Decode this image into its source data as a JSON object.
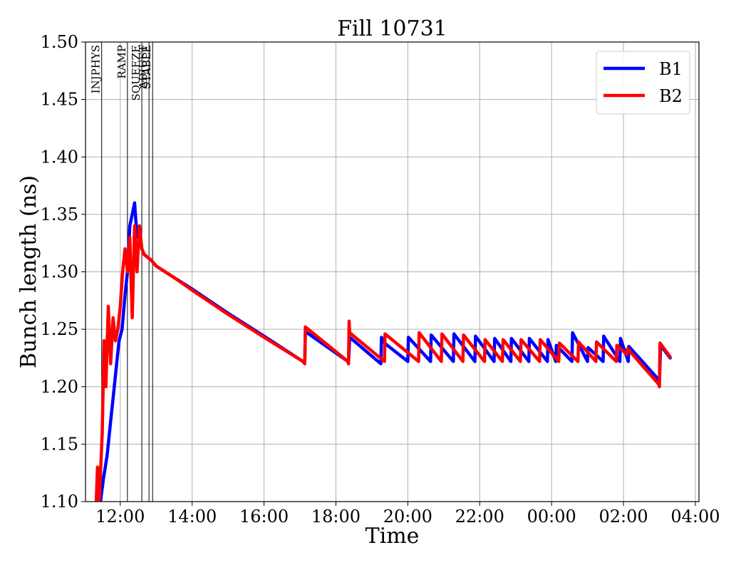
{
  "chart_data": {
    "type": "line",
    "title": "Fill 10731",
    "xlabel": "Time",
    "ylabel": "Bunch length (ns)",
    "x_unit": "time of day (hours, continuous across midnight)",
    "xlim": [
      "11:02",
      "04:06"
    ],
    "ylim": [
      1.1,
      1.5
    ],
    "x_ticks": [
      {
        "label": "12:00",
        "value": "12:00"
      },
      {
        "label": "14:00",
        "value": "14:00"
      },
      {
        "label": "16:00",
        "value": "16:00"
      },
      {
        "label": "18:00",
        "value": "18:00"
      },
      {
        "label": "20:00",
        "value": "20:00"
      },
      {
        "label": "22:00",
        "value": "22:00"
      },
      {
        "label": "00:00",
        "value": "00:00"
      },
      {
        "label": "02:00",
        "value": "02:00"
      },
      {
        "label": "04:00",
        "value": "04:00"
      }
    ],
    "y_ticks": [
      "1.10",
      "1.15",
      "1.20",
      "1.25",
      "1.30",
      "1.35",
      "1.40",
      "1.45",
      "1.50"
    ],
    "grid": true,
    "legend": {
      "placement": "top-right",
      "entries": [
        "B1",
        "B2"
      ]
    },
    "phases": [
      {
        "label": "INJPHYS",
        "x": "11:29"
      },
      {
        "label": "RAMP",
        "x": "12:12"
      },
      {
        "label": "SQUEEZE",
        "x": "12:36"
      },
      {
        "label": "ADJUST",
        "x": "12:48"
      },
      {
        "label": "STABLE",
        "x": "12:54"
      }
    ],
    "series": [
      {
        "name": "B1",
        "color": "#0000ff",
        "points": [
          [
            "11:21",
            1.1
          ],
          [
            "11:24",
            1.12
          ],
          [
            "11:27",
            1.1
          ],
          [
            "11:32",
            1.12
          ],
          [
            "11:38",
            1.14
          ],
          [
            "11:44",
            1.17
          ],
          [
            "11:50",
            1.2
          ],
          [
            "11:54",
            1.22
          ],
          [
            "11:58",
            1.24
          ],
          [
            "12:03",
            1.25
          ],
          [
            "12:08",
            1.28
          ],
          [
            "12:12",
            1.3
          ],
          [
            "12:16",
            1.34
          ],
          [
            "12:20",
            1.35
          ],
          [
            "12:24",
            1.36
          ],
          [
            "12:28",
            1.33
          ],
          [
            "12:32",
            1.34
          ],
          [
            "12:36",
            1.32
          ],
          [
            "12:40",
            1.315
          ],
          [
            "12:52",
            1.31
          ],
          [
            "13:00",
            1.305
          ],
          [
            "13:30",
            1.295
          ],
          [
            "14:00",
            1.285
          ],
          [
            "15:00",
            1.264
          ],
          [
            "16:00",
            1.244
          ],
          [
            "17:05",
            1.222
          ],
          [
            "17:08",
            1.22
          ],
          [
            "17:09",
            1.248
          ],
          [
            "18:20",
            1.222
          ],
          [
            "18:21",
            1.22
          ],
          [
            "18:23",
            1.243
          ],
          [
            "19:15",
            1.22
          ],
          [
            "19:16",
            1.243
          ],
          [
            "19:21",
            1.238
          ],
          [
            "20:00",
            1.222
          ],
          [
            "20:01",
            1.243
          ],
          [
            "20:38",
            1.222
          ],
          [
            "20:39",
            1.245
          ],
          [
            "21:16",
            1.222
          ],
          [
            "21:17",
            1.246
          ],
          [
            "21:52",
            1.222
          ],
          [
            "21:53",
            1.244
          ],
          [
            "22:24",
            1.222
          ],
          [
            "22:25",
            1.242
          ],
          [
            "22:52",
            1.222
          ],
          [
            "22:53",
            1.242
          ],
          [
            "23:22",
            1.222
          ],
          [
            "23:23",
            1.242
          ],
          [
            "23:53",
            1.222
          ],
          [
            "23:54",
            1.241
          ],
          [
            "00:07",
            1.222
          ],
          [
            "00:08",
            1.236
          ],
          [
            "00:34",
            1.222
          ],
          [
            "00:35",
            1.247
          ],
          [
            "01:00",
            1.222
          ],
          [
            "01:01",
            1.234
          ],
          [
            "01:26",
            1.222
          ],
          [
            "01:27",
            1.244
          ],
          [
            "01:54",
            1.222
          ],
          [
            "01:55",
            1.242
          ],
          [
            "02:08",
            1.222
          ],
          [
            "02:09",
            1.235
          ],
          [
            "02:59",
            1.206
          ],
          [
            "03:00",
            1.204
          ],
          [
            "03:02",
            1.236
          ],
          [
            "03:18",
            1.225
          ]
        ]
      },
      {
        "name": "B2",
        "color": "#ff0000",
        "points": [
          [
            "11:20",
            1.1
          ],
          [
            "11:22",
            1.13
          ],
          [
            "11:25",
            1.1
          ],
          [
            "11:30",
            1.16
          ],
          [
            "11:33",
            1.24
          ],
          [
            "11:36",
            1.2
          ],
          [
            "11:40",
            1.27
          ],
          [
            "11:44",
            1.22
          ],
          [
            "11:48",
            1.26
          ],
          [
            "11:52",
            1.24
          ],
          [
            "11:56",
            1.25
          ],
          [
            "12:00",
            1.27
          ],
          [
            "12:04",
            1.3
          ],
          [
            "12:08",
            1.32
          ],
          [
            "12:12",
            1.3
          ],
          [
            "12:16",
            1.33
          ],
          [
            "12:20",
            1.26
          ],
          [
            "12:24",
            1.34
          ],
          [
            "12:28",
            1.3
          ],
          [
            "12:32",
            1.34
          ],
          [
            "12:36",
            1.32
          ],
          [
            "12:40",
            1.315
          ],
          [
            "12:52",
            1.31
          ],
          [
            "13:00",
            1.305
          ],
          [
            "13:30",
            1.295
          ],
          [
            "14:00",
            1.284
          ],
          [
            "15:00",
            1.263
          ],
          [
            "16:00",
            1.243
          ],
          [
            "17:05",
            1.222
          ],
          [
            "17:08",
            1.22
          ],
          [
            "17:09",
            1.252
          ],
          [
            "18:20",
            1.222
          ],
          [
            "18:21",
            1.22
          ],
          [
            "18:22",
            1.257
          ],
          [
            "18:23",
            1.247
          ],
          [
            "19:21",
            1.222
          ],
          [
            "19:22",
            1.246
          ],
          [
            "20:18",
            1.222
          ],
          [
            "20:19",
            1.247
          ],
          [
            "20:56",
            1.222
          ],
          [
            "20:57",
            1.246
          ],
          [
            "21:32",
            1.222
          ],
          [
            "21:33",
            1.245
          ],
          [
            "22:08",
            1.222
          ],
          [
            "22:09",
            1.241
          ],
          [
            "22:38",
            1.222
          ],
          [
            "22:39",
            1.241
          ],
          [
            "23:08",
            1.222
          ],
          [
            "23:09",
            1.241
          ],
          [
            "23:40",
            1.222
          ],
          [
            "23:41",
            1.241
          ],
          [
            "00:12",
            1.222
          ],
          [
            "00:13",
            1.238
          ],
          [
            "00:44",
            1.222
          ],
          [
            "00:45",
            1.239
          ],
          [
            "01:14",
            1.222
          ],
          [
            "01:15",
            1.239
          ],
          [
            "01:48",
            1.222
          ],
          [
            "01:49",
            1.236
          ],
          [
            "02:06",
            1.228
          ],
          [
            "02:07",
            1.233
          ],
          [
            "02:59",
            1.202
          ],
          [
            "03:00",
            1.2
          ],
          [
            "03:01",
            1.238
          ],
          [
            "03:18",
            1.226
          ]
        ]
      }
    ]
  }
}
